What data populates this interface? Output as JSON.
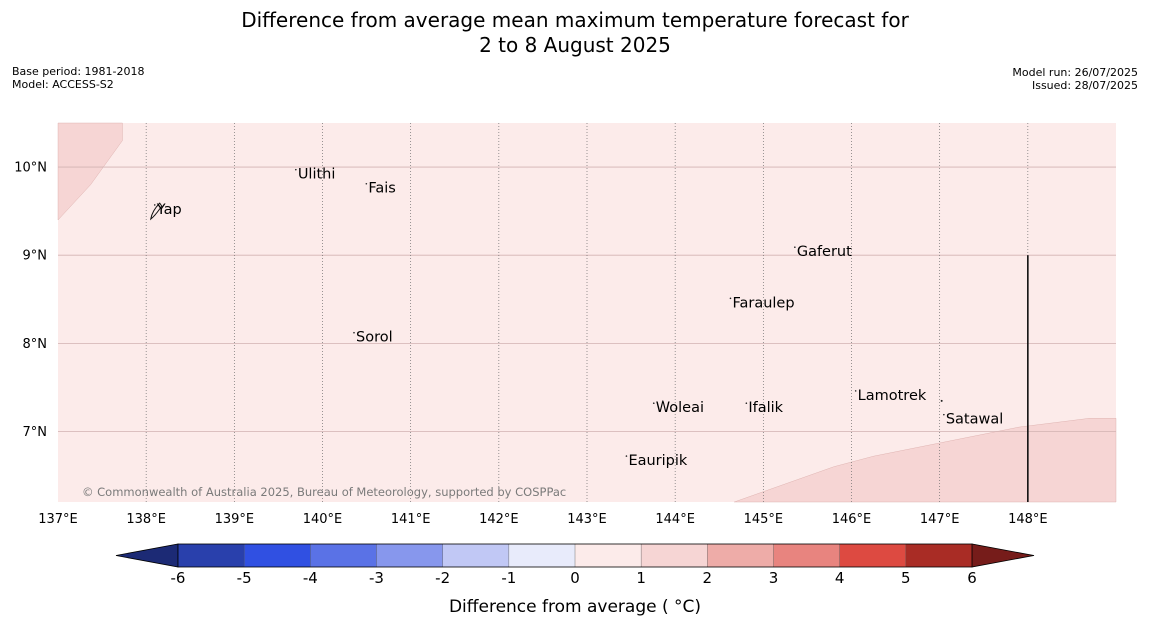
{
  "title": {
    "line1": "Difference from average mean maximum temperature forecast for",
    "line2": "2 to 8 August 2025"
  },
  "meta_left": {
    "base_period": "Base period: 1981-2018",
    "model": "Model: ACCESS-S2"
  },
  "meta_right": {
    "model_run": "Model run: 26/07/2025",
    "issued": "Issued: 28/07/2025"
  },
  "map": {
    "lon_range": [
      137.0,
      149.0
    ],
    "lat_range": [
      6.2,
      10.5
    ],
    "lon_ticks": [
      137,
      138,
      139,
      140,
      141,
      142,
      143,
      144,
      145,
      146,
      147,
      148
    ],
    "lon_tick_labels": [
      "137°E",
      "138°E",
      "139°E",
      "140°E",
      "141°E",
      "142°E",
      "143°E",
      "144°E",
      "145°E",
      "146°E",
      "147°E",
      "148°E"
    ],
    "lat_ticks": [
      7,
      8,
      9,
      10
    ],
    "lat_tick_labels": [
      "7°N",
      "8°N",
      "9°N",
      "10°N"
    ],
    "background_category": "0 to 1",
    "background_color": "#fcebea",
    "warm_region_category": "1 to 2",
    "warm_region_color": "#f6d5d4",
    "warm_region_top_left": [
      [
        137.0,
        9.4
      ],
      [
        137.37,
        9.8
      ],
      [
        137.73,
        10.3
      ],
      [
        137.73,
        10.5
      ],
      [
        137.0,
        10.5
      ]
    ],
    "warm_region_bottom_right": [
      [
        144.67,
        6.2
      ],
      [
        145.8,
        6.6
      ],
      [
        146.25,
        6.72
      ],
      [
        147.9,
        7.05
      ],
      [
        148.7,
        7.15
      ],
      [
        149.0,
        7.15
      ],
      [
        149.0,
        6.2
      ]
    ],
    "boundary_line": {
      "lon": 148.0,
      "lat_from": 6.2,
      "lat_to": 9.0
    },
    "places": [
      {
        "name": "Ulithi",
        "lon": 139.72,
        "lat": 9.88
      },
      {
        "name": "Fais",
        "lon": 140.52,
        "lat": 9.72
      },
      {
        "name": "Yap",
        "lon": 138.12,
        "lat": 9.48
      },
      {
        "name": "Gaferut",
        "lon": 145.38,
        "lat": 9.0
      },
      {
        "name": "Faraulep",
        "lon": 144.65,
        "lat": 8.42
      },
      {
        "name": "Sorol",
        "lon": 140.38,
        "lat": 8.03
      },
      {
        "name": "Lamotrek",
        "lon": 146.07,
        "lat": 7.37
      },
      {
        "name": "Woleai",
        "lon": 143.78,
        "lat": 7.23
      },
      {
        "name": "Ifalik",
        "lon": 144.83,
        "lat": 7.23
      },
      {
        "name": "Satawal",
        "lon": 147.07,
        "lat": 7.1
      },
      {
        "name": "Eauripik",
        "lon": 143.47,
        "lat": 6.63
      }
    ],
    "copyright": "© Commonwealth of Australia 2025, Bureau of Meteorology, supported by COSPPac"
  },
  "colorbar": {
    "label": "Difference from average ( °C)",
    "ticks": [
      "-6",
      "-5",
      "-4",
      "-3",
      "-2",
      "-1",
      "0",
      "1",
      "2",
      "3",
      "4",
      "5",
      "6"
    ],
    "under_color": "#1c2a75",
    "over_color": "#761c1a",
    "bin_colors": [
      "#2940ac",
      "#3050e2",
      "#5a72e6",
      "#8797ed",
      "#c1c8f5",
      "#e8ebfb",
      "#fcebea",
      "#f6d5d4",
      "#eeaca8",
      "#e8847f",
      "#dd4a41",
      "#a92c25"
    ]
  }
}
